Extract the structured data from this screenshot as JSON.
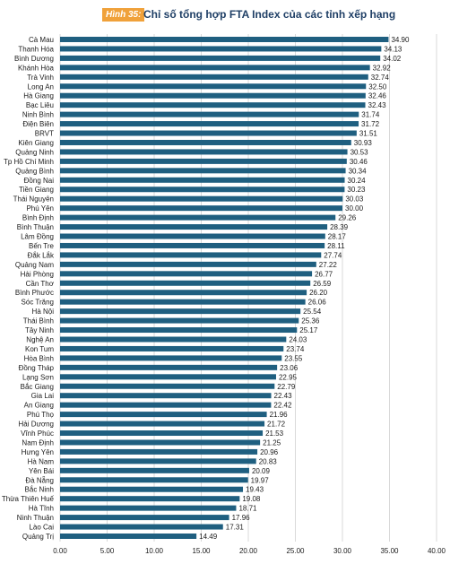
{
  "figure": {
    "badge": "Hình 35:",
    "title": "Chỉ số tổng hợp FTA Index của các tỉnh xếp hạng"
  },
  "colors": {
    "bar": "#1f5f80",
    "grid": "#d9d9d9",
    "badge": "#f0a13a",
    "title": "#1f3f66"
  },
  "chart_data": {
    "type": "bar",
    "orientation": "horizontal",
    "title": "",
    "xlabel": "",
    "ylabel": "",
    "xlim": [
      0,
      40
    ],
    "x_ticks": [
      "0.00",
      "5.00",
      "10.00",
      "15.00",
      "20.00",
      "25.00",
      "30.00",
      "35.00",
      "40.00"
    ],
    "grid": "vertical",
    "categories": [
      "Cà Mau",
      "Thanh Hóa",
      "Bình Dương",
      "Khánh Hòa",
      "Trà Vinh",
      "Long An",
      "Hà Giang",
      "Bạc Liêu",
      "Ninh Bình",
      "Điện Biên",
      "BRVT",
      "Kiên Giang",
      "Quảng Ninh",
      "Tp Hồ Chí Minh",
      "Quảng Bình",
      "Đồng Nai",
      "Tiền Giang",
      "Thái Nguyên",
      "Phú Yên",
      "Bình Định",
      "Bình Thuận",
      "Lâm Đồng",
      "Bến Tre",
      "Đắk Lắk",
      "Quảng Nam",
      "Hải Phòng",
      "Cần Thơ",
      "Bình Phước",
      "Sóc Trăng",
      "Hà Nội",
      "Thái Bình",
      "Tây Ninh",
      "Nghệ An",
      "Kon Tum",
      "Hòa Bình",
      "Đồng Tháp",
      "Lạng Sơn",
      "Bắc Giang",
      "Gia Lai",
      "An Giang",
      "Phú Thọ",
      "Hải Dương",
      "Vĩnh Phúc",
      "Nam Định",
      "Hưng Yên",
      "Hà Nam",
      "Yên Bái",
      "Đà Nẵng",
      "Bắc Ninh",
      "Thừa Thiên Huế",
      "Hà Tĩnh",
      "Ninh Thuận",
      "Lào Cai",
      "Quảng Trị"
    ],
    "values": [
      34.9,
      34.13,
      34.02,
      32.92,
      32.74,
      32.5,
      32.46,
      32.43,
      31.74,
      31.72,
      31.51,
      30.93,
      30.53,
      30.46,
      30.34,
      30.24,
      30.23,
      30.03,
      30.0,
      29.26,
      28.39,
      28.17,
      28.11,
      27.74,
      27.22,
      26.77,
      26.59,
      26.2,
      26.06,
      25.54,
      25.36,
      25.17,
      24.03,
      23.74,
      23.55,
      23.06,
      22.95,
      22.79,
      22.43,
      22.42,
      21.96,
      21.72,
      21.53,
      21.25,
      20.96,
      20.83,
      20.09,
      19.97,
      19.43,
      19.08,
      18.71,
      17.96,
      17.31,
      14.49
    ],
    "value_labels": [
      "34.90",
      "34.13",
      "34.02",
      "32.92",
      "32.74",
      "32.50",
      "32.46",
      "32.43",
      "31.74",
      "31.72",
      "31.51",
      "30.93",
      "30.53",
      "30.46",
      "30.34",
      "30.24",
      "30.23",
      "30.03",
      "30.00",
      "29.26",
      "28.39",
      "28.17",
      "28.11",
      "27.74",
      "27.22",
      "26.77",
      "26.59",
      "26.20",
      "26.06",
      "25.54",
      "25.36",
      "25.17",
      "24.03",
      "23.74",
      "23.55",
      "23.06",
      "22.95",
      "22.79",
      "22.43",
      "22.42",
      "21.96",
      "21.72",
      "21.53",
      "21.25",
      "20.96",
      "20.83",
      "20.09",
      "19.97",
      "19.43",
      "19.08",
      "18.71",
      "17.96",
      "17.31",
      "14.49"
    ]
  }
}
